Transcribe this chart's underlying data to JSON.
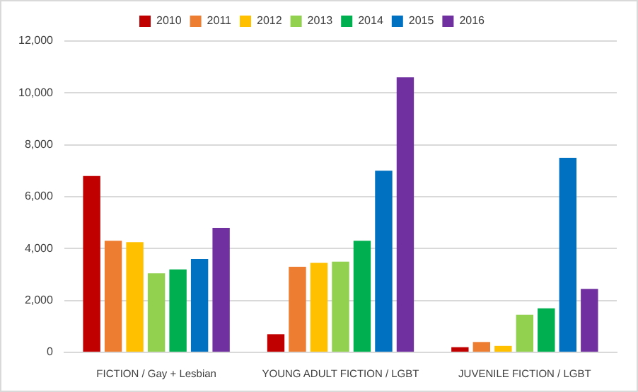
{
  "chart_data": {
    "type": "bar",
    "categories": [
      "FICTION / Gay + Lesbian",
      "YOUNG ADULT FICTION / LGBT",
      "JUVENILE FICTION / LGBT"
    ],
    "series": [
      {
        "name": "2010",
        "color": "#c00000",
        "values": [
          6800,
          700,
          200
        ]
      },
      {
        "name": "2011",
        "color": "#ed7d31",
        "values": [
          4300,
          3300,
          400
        ]
      },
      {
        "name": "2012",
        "color": "#ffc000",
        "values": [
          4250,
          3450,
          250
        ]
      },
      {
        "name": "2013",
        "color": "#92d050",
        "values": [
          3050,
          3500,
          1450
        ]
      },
      {
        "name": "2014",
        "color": "#00b050",
        "values": [
          3200,
          4300,
          1700
        ]
      },
      {
        "name": "2015",
        "color": "#0070c0",
        "values": [
          3600,
          7000,
          7500
        ]
      },
      {
        "name": "2016",
        "color": "#7030a0",
        "values": [
          4800,
          10600,
          2450
        ]
      }
    ],
    "ylim": [
      0,
      12000
    ],
    "yticks": [
      {
        "value": 0,
        "label": "0"
      },
      {
        "value": 2000,
        "label": "2,000"
      },
      {
        "value": 4000,
        "label": "4,000"
      },
      {
        "value": 6000,
        "label": "6,000"
      },
      {
        "value": 8000,
        "label": "8,000"
      },
      {
        "value": 10000,
        "label": "10,000"
      },
      {
        "value": 12000,
        "label": "12,000"
      }
    ],
    "grid": "y",
    "legend": "top"
  }
}
